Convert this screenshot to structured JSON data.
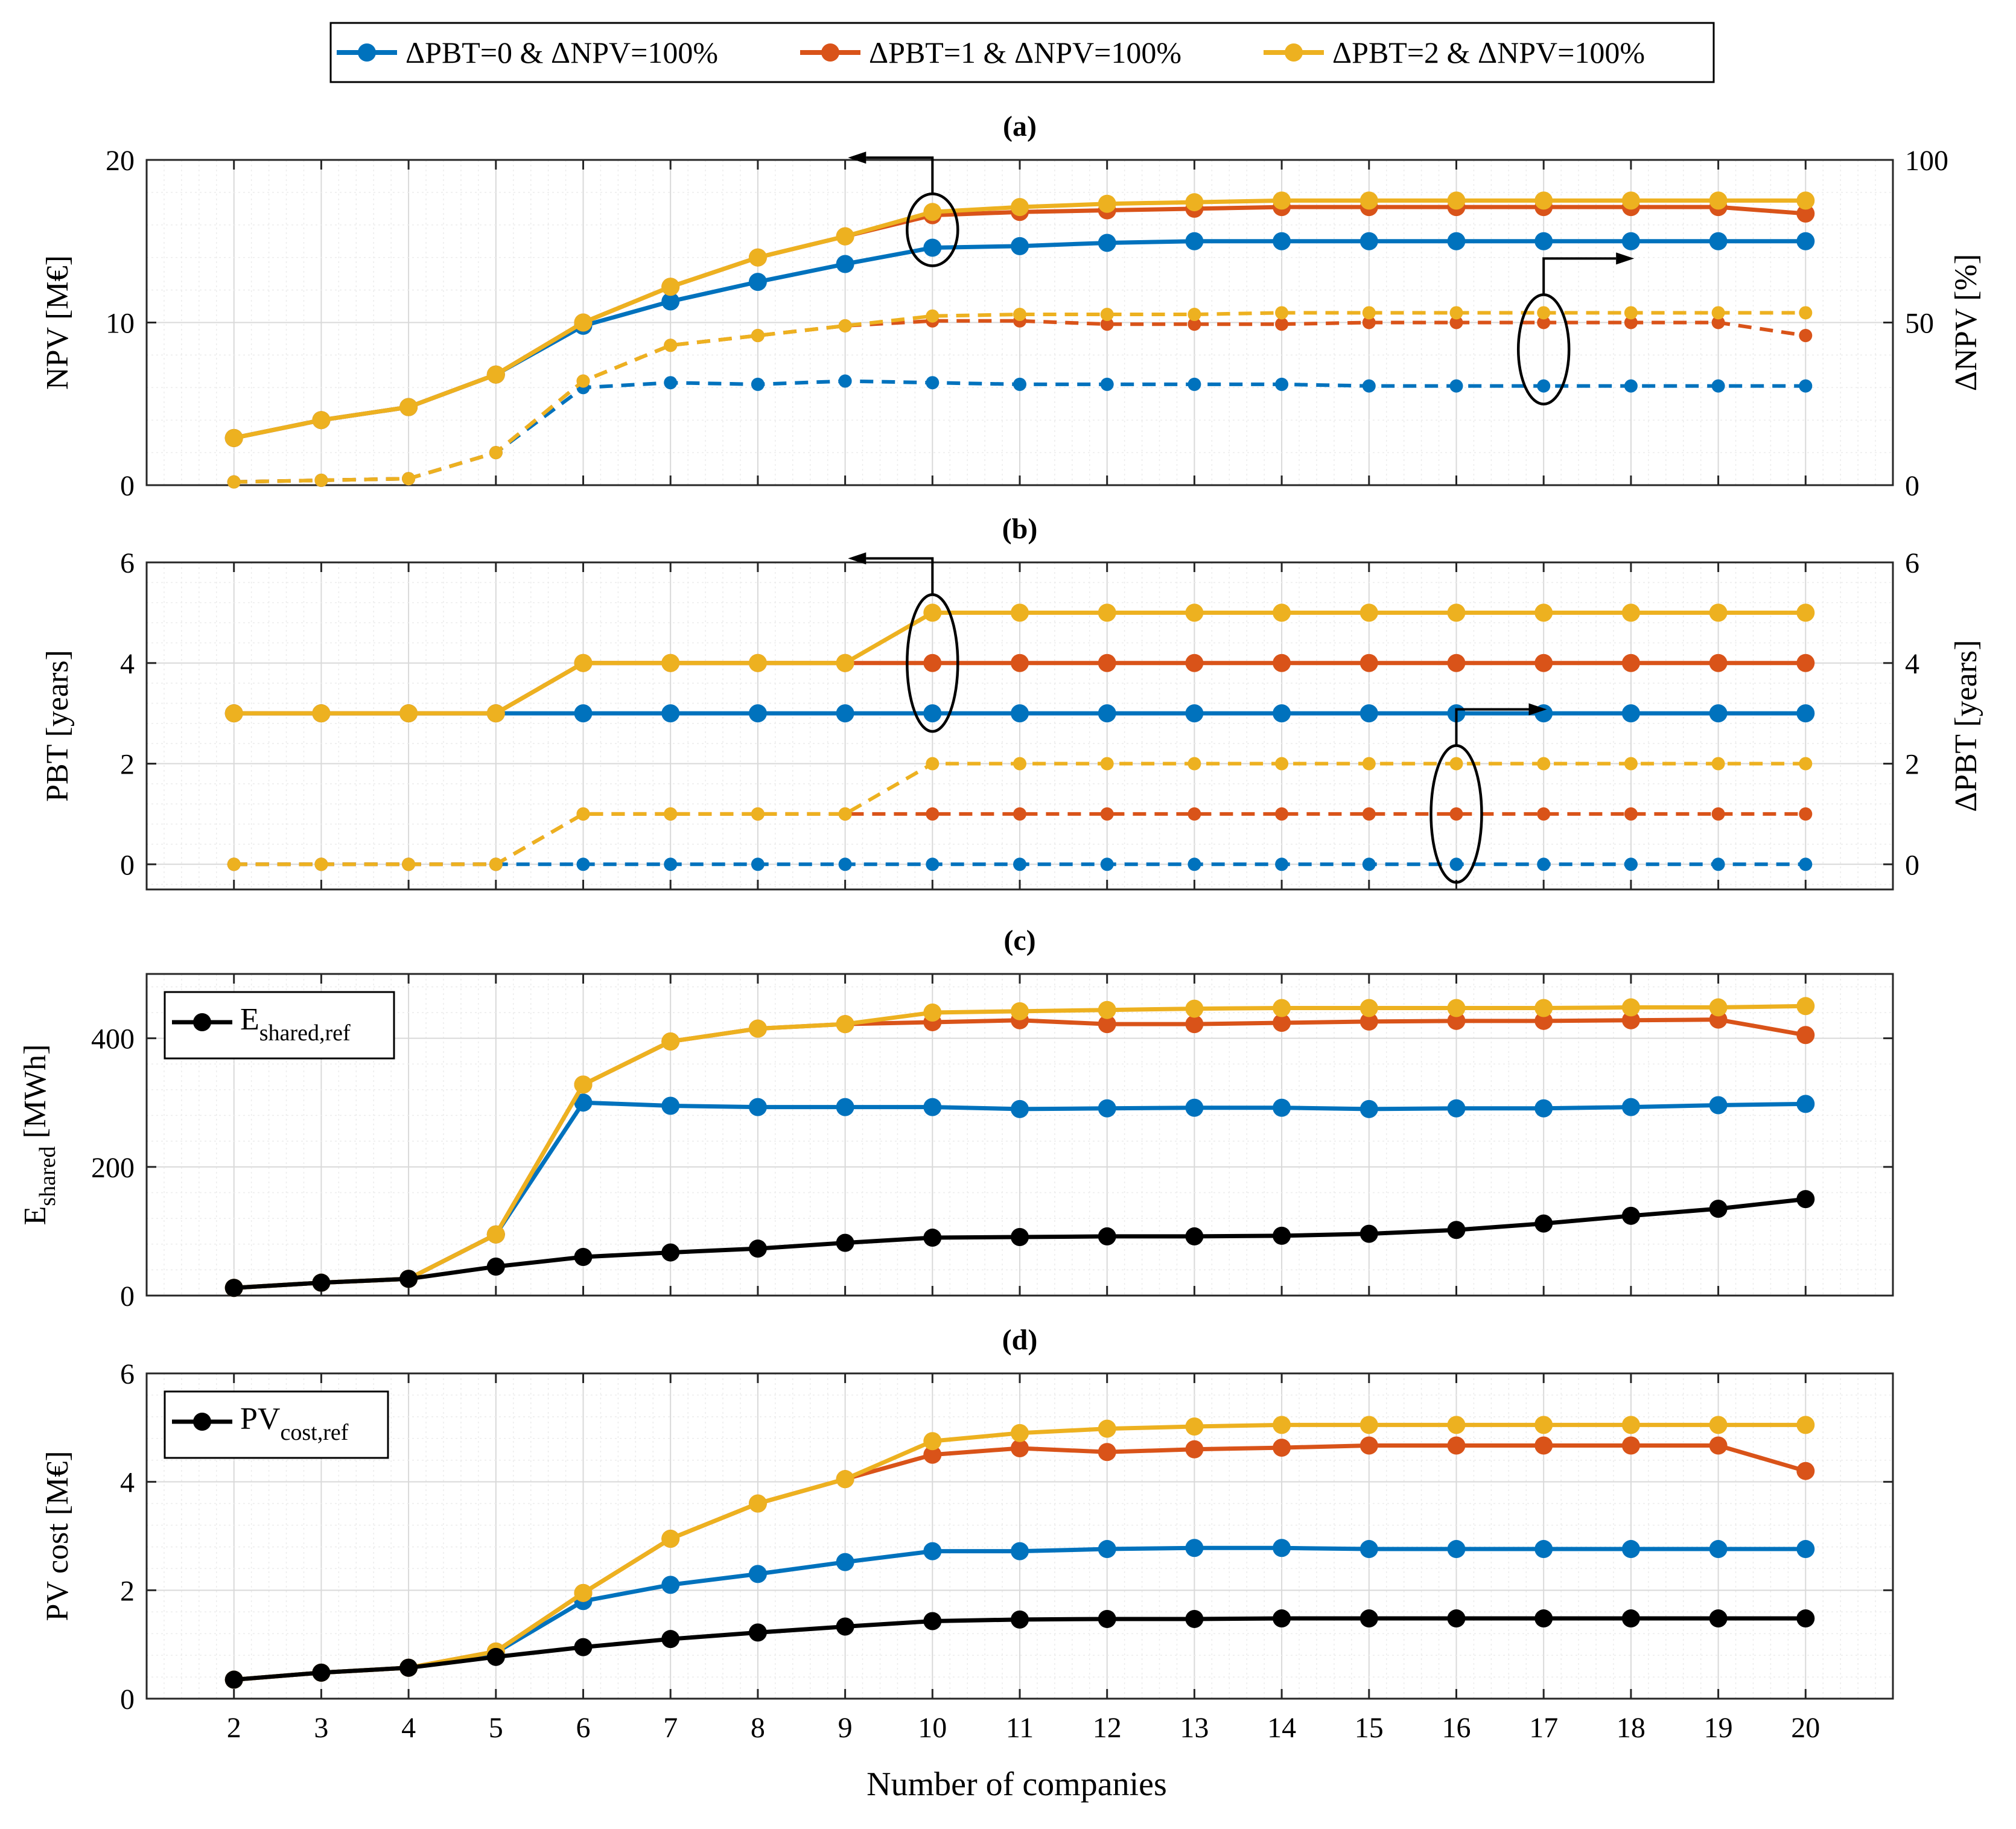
{
  "figure": {
    "legend": [
      {
        "label": "ΔPBT=0 & ΔNPV=100%",
        "color": "#0072BD"
      },
      {
        "label": "ΔPBT=1 & ΔNPV=100%",
        "color": "#D95319"
      },
      {
        "label": "ΔPBT=2 & ΔNPV=100%",
        "color": "#EDB120"
      }
    ],
    "xlabel": "Number of companies"
  },
  "chart_data": [
    {
      "type": "line",
      "panel": "(a)",
      "title": "(a)",
      "x": [
        2,
        3,
        4,
        5,
        6,
        7,
        8,
        9,
        10,
        11,
        12,
        13,
        14,
        15,
        16,
        17,
        18,
        19,
        20
      ],
      "xlabel": "",
      "ylabel": "NPV [M€]",
      "ylim": [
        0,
        20
      ],
      "yticks": [
        0,
        10,
        20
      ],
      "y2label": "ΔNPV [%]",
      "y2lim": [
        0,
        100
      ],
      "y2ticks": [
        0,
        50,
        100
      ],
      "grid": true,
      "series": [
        {
          "name": "ΔPBT=0 & ΔNPV=100%",
          "axis": "left",
          "style": "solid",
          "color": "#0072BD",
          "values": [
            2.9,
            4.0,
            4.8,
            6.8,
            9.8,
            11.3,
            12.5,
            13.6,
            14.6,
            14.7,
            14.9,
            15.0,
            15.0,
            15.0,
            15.0,
            15.0,
            15.0,
            15.0,
            15.0
          ]
        },
        {
          "name": "ΔPBT=1 & ΔNPV=100%",
          "axis": "left",
          "style": "solid",
          "color": "#D95319",
          "values": [
            2.9,
            4.0,
            4.8,
            6.8,
            10.0,
            12.2,
            14.0,
            15.3,
            16.6,
            16.8,
            16.9,
            17.0,
            17.1,
            17.1,
            17.1,
            17.1,
            17.1,
            17.1,
            16.7
          ]
        },
        {
          "name": "ΔPBT=2 & ΔNPV=100%",
          "axis": "left",
          "style": "solid",
          "color": "#EDB120",
          "values": [
            2.9,
            4.0,
            4.8,
            6.8,
            10.0,
            12.2,
            14.0,
            15.3,
            16.8,
            17.1,
            17.3,
            17.4,
            17.5,
            17.5,
            17.5,
            17.5,
            17.5,
            17.5,
            17.5
          ]
        },
        {
          "name": "ΔNPV (ΔPBT=0)",
          "axis": "right",
          "style": "dashed",
          "color": "#0072BD",
          "values": [
            1,
            1.5,
            2,
            10,
            30,
            31.5,
            31,
            32,
            31.5,
            31,
            31,
            31,
            31,
            30.5,
            30.5,
            30.5,
            30.5,
            30.5,
            30.5
          ]
        },
        {
          "name": "ΔNPV (ΔPBT=1)",
          "axis": "right",
          "style": "dashed",
          "color": "#D95319",
          "values": [
            1,
            1.5,
            2,
            10,
            32,
            43,
            46,
            49,
            50.5,
            50.5,
            49.5,
            49.5,
            49.5,
            50,
            50,
            50,
            50,
            50,
            46
          ]
        },
        {
          "name": "ΔNPV (ΔPBT=2)",
          "axis": "right",
          "style": "dashed",
          "color": "#EDB120",
          "values": [
            1,
            1.5,
            2,
            10,
            32,
            43,
            46,
            49,
            52,
            52.5,
            52.5,
            52.5,
            53,
            53,
            53,
            53,
            53,
            53,
            53
          ]
        }
      ],
      "annotations": [
        {
          "type": "ellipse-arrow",
          "x": 10,
          "points_to": "left axis"
        },
        {
          "type": "ellipse-arrow",
          "x": 17,
          "points_to": "right axis"
        }
      ]
    },
    {
      "type": "line",
      "panel": "(b)",
      "title": "(b)",
      "x": [
        2,
        3,
        4,
        5,
        6,
        7,
        8,
        9,
        10,
        11,
        12,
        13,
        14,
        15,
        16,
        17,
        18,
        19,
        20
      ],
      "xlabel": "",
      "ylabel": "PBT [years]",
      "ylim": [
        -0.5,
        6
      ],
      "yticks": [
        0,
        2,
        4,
        6
      ],
      "y2label": "ΔPBT [years]",
      "y2lim": [
        -0.5,
        6
      ],
      "y2ticks": [
        0,
        2,
        4,
        6
      ],
      "grid": true,
      "series": [
        {
          "name": "ΔPBT=0 & ΔNPV=100%",
          "axis": "left",
          "style": "solid",
          "color": "#0072BD",
          "values": [
            3,
            3,
            3,
            3,
            3,
            3,
            3,
            3,
            3,
            3,
            3,
            3,
            3,
            3,
            3,
            3,
            3,
            3,
            3
          ]
        },
        {
          "name": "ΔPBT=1 & ΔNPV=100%",
          "axis": "left",
          "style": "solid",
          "color": "#D95319",
          "values": [
            3,
            3,
            3,
            3,
            4,
            4,
            4,
            4,
            4,
            4,
            4,
            4,
            4,
            4,
            4,
            4,
            4,
            4,
            4
          ]
        },
        {
          "name": "ΔPBT=2 & ΔNPV=100%",
          "axis": "left",
          "style": "solid",
          "color": "#EDB120",
          "values": [
            3,
            3,
            3,
            3,
            4,
            4,
            4,
            4,
            5,
            5,
            5,
            5,
            5,
            5,
            5,
            5,
            5,
            5,
            5
          ]
        },
        {
          "name": "ΔPBT (ΔPBT=0)",
          "axis": "right",
          "style": "dashed",
          "color": "#0072BD",
          "values": [
            0,
            0,
            0,
            0,
            0,
            0,
            0,
            0,
            0,
            0,
            0,
            0,
            0,
            0,
            0,
            0,
            0,
            0,
            0
          ]
        },
        {
          "name": "ΔPBT (ΔPBT=1)",
          "axis": "right",
          "style": "dashed",
          "color": "#D95319",
          "values": [
            0,
            0,
            0,
            0,
            1,
            1,
            1,
            1,
            1,
            1,
            1,
            1,
            1,
            1,
            1,
            1,
            1,
            1,
            1
          ]
        },
        {
          "name": "ΔPBT (ΔPBT=2)",
          "axis": "right",
          "style": "dashed",
          "color": "#EDB120",
          "values": [
            0,
            0,
            0,
            0,
            1,
            1,
            1,
            1,
            2,
            2,
            2,
            2,
            2,
            2,
            2,
            2,
            2,
            2,
            2
          ]
        }
      ],
      "annotations": [
        {
          "type": "ellipse-arrow",
          "x": 10,
          "points_to": "left axis"
        },
        {
          "type": "ellipse-arrow",
          "x": 16,
          "points_to": "right axis"
        }
      ]
    },
    {
      "type": "line",
      "panel": "(c)",
      "title": "(c)",
      "x": [
        2,
        3,
        4,
        5,
        6,
        7,
        8,
        9,
        10,
        11,
        12,
        13,
        14,
        15,
        16,
        17,
        18,
        19,
        20
      ],
      "xlabel": "",
      "ylabel": "E_shared [MWh]",
      "ylim": [
        0,
        500
      ],
      "yticks": [
        0,
        200,
        400
      ],
      "grid": true,
      "inner_legend": {
        "label": "E",
        "subscript": "shared,ref",
        "position": "top-left"
      },
      "series": [
        {
          "name": "ΔPBT=0 & ΔNPV=100%",
          "style": "solid",
          "color": "#0072BD",
          "values": [
            12,
            20,
            26,
            95,
            300,
            295,
            293,
            293,
            293,
            290,
            291,
            292,
            292,
            290,
            291,
            291,
            293,
            296,
            298
          ]
        },
        {
          "name": "ΔPBT=1 & ΔNPV=100%",
          "style": "solid",
          "color": "#D95319",
          "values": [
            12,
            20,
            26,
            95,
            328,
            395,
            415,
            422,
            425,
            428,
            422,
            422,
            424,
            426,
            427,
            427,
            428,
            429,
            405
          ]
        },
        {
          "name": "ΔPBT=2 & ΔNPV=100%",
          "style": "solid",
          "color": "#EDB120",
          "values": [
            12,
            20,
            26,
            95,
            328,
            395,
            415,
            422,
            440,
            442,
            444,
            446,
            447,
            447,
            447,
            447,
            448,
            448,
            450
          ]
        },
        {
          "name": "E_shared,ref",
          "style": "solid",
          "color": "#000000",
          "values": [
            12,
            20,
            26,
            45,
            60,
            67,
            73,
            82,
            90,
            91,
            92,
            92,
            93,
            96,
            102,
            112,
            124,
            135,
            150
          ]
        }
      ]
    },
    {
      "type": "line",
      "panel": "(d)",
      "title": "(d)",
      "x": [
        2,
        3,
        4,
        5,
        6,
        7,
        8,
        9,
        10,
        11,
        12,
        13,
        14,
        15,
        16,
        17,
        18,
        19,
        20
      ],
      "xlabel": "Number of companies",
      "ylabel": "PV cost [M€]",
      "ylim": [
        0,
        6
      ],
      "yticks": [
        0,
        2,
        4,
        6
      ],
      "grid": true,
      "inner_legend": {
        "label": "PV",
        "subscript": "cost,ref",
        "position": "top-left"
      },
      "series": [
        {
          "name": "ΔPBT=0 & ΔNPV=100%",
          "style": "solid",
          "color": "#0072BD",
          "values": [
            0.35,
            0.48,
            0.57,
            0.85,
            1.8,
            2.1,
            2.3,
            2.52,
            2.72,
            2.72,
            2.76,
            2.78,
            2.78,
            2.76,
            2.76,
            2.76,
            2.76,
            2.76,
            2.76
          ]
        },
        {
          "name": "ΔPBT=1 & ΔNPV=100%",
          "style": "solid",
          "color": "#D95319",
          "values": [
            0.35,
            0.48,
            0.57,
            0.87,
            1.95,
            2.95,
            3.6,
            4.05,
            4.5,
            4.62,
            4.55,
            4.6,
            4.63,
            4.67,
            4.67,
            4.67,
            4.67,
            4.67,
            4.2
          ]
        },
        {
          "name": "ΔPBT=2 & ΔNPV=100%",
          "style": "solid",
          "color": "#EDB120",
          "values": [
            0.35,
            0.48,
            0.57,
            0.87,
            1.95,
            2.95,
            3.6,
            4.05,
            4.75,
            4.9,
            4.98,
            5.02,
            5.05,
            5.05,
            5.05,
            5.05,
            5.05,
            5.05,
            5.05
          ]
        },
        {
          "name": "PV_cost,ref",
          "style": "solid",
          "color": "#000000",
          "values": [
            0.35,
            0.48,
            0.57,
            0.77,
            0.95,
            1.1,
            1.22,
            1.33,
            1.43,
            1.46,
            1.47,
            1.47,
            1.48,
            1.48,
            1.48,
            1.48,
            1.48,
            1.48,
            1.48
          ]
        }
      ]
    }
  ]
}
